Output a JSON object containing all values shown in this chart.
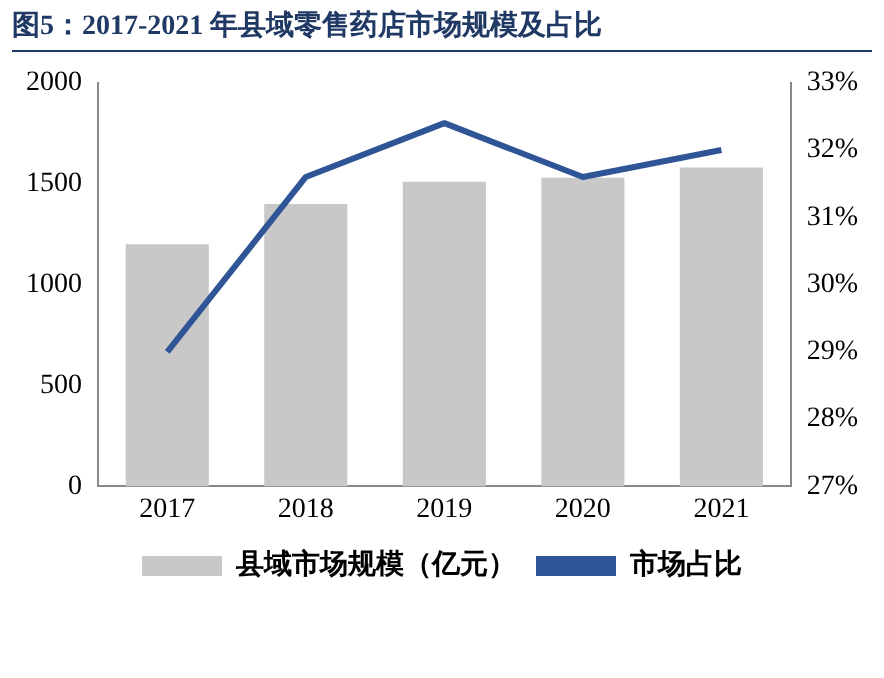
{
  "chart_data": {
    "type": "bar",
    "title": "图5：2017-2021 年县域零售药店市场规模及占比",
    "categories": [
      "2017",
      "2018",
      "2019",
      "2020",
      "2021"
    ],
    "series": [
      {
        "name": "县域市场规模（亿元）",
        "color": "#c8c8c8",
        "values": [
          1200,
          1400,
          1510,
          1530,
          1580
        ]
      },
      {
        "name": "市场占比",
        "type": "line",
        "axis": "y2",
        "color": "#2f5597",
        "values": [
          29.0,
          31.6,
          32.4,
          31.6,
          32.0
        ]
      }
    ],
    "ylim": [
      0,
      2000
    ],
    "yticks": [
      0,
      500,
      1000,
      1500,
      2000
    ],
    "y2lim": [
      27,
      33
    ],
    "y2ticks": [
      {
        "value": 27,
        "label": "27%"
      },
      {
        "value": 28,
        "label": "28%"
      },
      {
        "value": 29,
        "label": "29%"
      },
      {
        "value": 30,
        "label": "30%"
      },
      {
        "value": 31,
        "label": "31%"
      },
      {
        "value": 32,
        "label": "32%"
      },
      {
        "value": 33,
        "label": "33%"
      }
    ],
    "grid": false,
    "legend": "bottom",
    "marker": "none",
    "line_style": "solid"
  }
}
